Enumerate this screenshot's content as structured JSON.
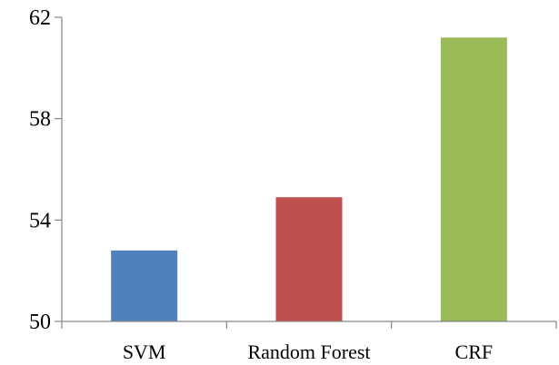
{
  "chart_data": {
    "type": "bar",
    "title": "",
    "xlabel": "",
    "ylabel": "",
    "categories": [
      "SVM",
      "Random Forest",
      "CRF"
    ],
    "values": [
      52.8,
      54.9,
      61.2
    ],
    "colors": [
      "#4f81bd",
      "#c0504d",
      "#9bbb59"
    ],
    "ylim": [
      50,
      62
    ],
    "yticks": [
      50,
      54,
      58,
      62
    ],
    "ytick_labels": [
      "50",
      "54",
      "58",
      "62"
    ],
    "grid": false,
    "legend": "none"
  }
}
